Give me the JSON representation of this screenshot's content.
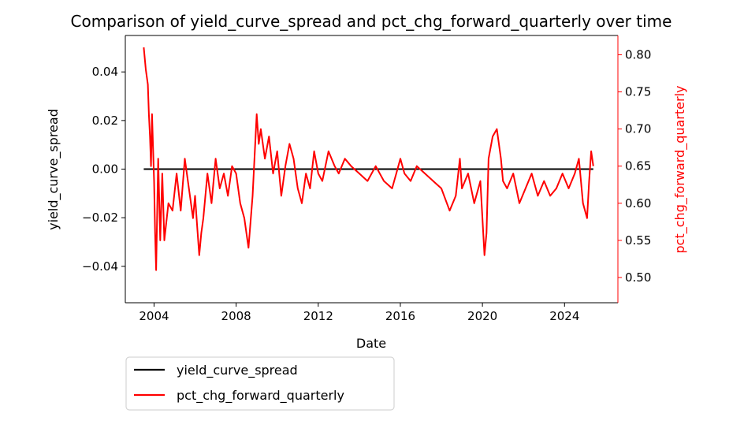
{
  "chart_data": {
    "type": "line",
    "title": "Comparison of yield_curve_spread and pct_chg_forward_quarterly over time",
    "xlabel": "Date",
    "ylabel_left": "yield_curve_spread",
    "ylabel_right": "pct_chg_forward_quarterly",
    "xlim": [
      2002.6,
      2026.6
    ],
    "ylim_left": [
      -0.055,
      0.055
    ],
    "ylim_right": [
      0.466,
      0.826
    ],
    "x_ticks": [
      2004,
      2008,
      2012,
      2016,
      2020,
      2024
    ],
    "x_tick_labels": [
      "2004",
      "2008",
      "2012",
      "2016",
      "2020",
      "2024"
    ],
    "y_ticks_left": [
      -0.04,
      -0.02,
      0.0,
      0.02,
      0.04
    ],
    "y_tick_labels_left": [
      "−0.04",
      "−0.02",
      "0.00",
      "0.02",
      "0.04"
    ],
    "y_ticks_right": [
      0.5,
      0.55,
      0.6,
      0.65,
      0.7,
      0.75,
      0.8
    ],
    "y_tick_labels_right": [
      "0.50",
      "0.55",
      "0.60",
      "0.65",
      "0.70",
      "0.75",
      "0.80"
    ],
    "grid": false,
    "legend_placement": "below-left",
    "series": [
      {
        "name": "yield_curve_spread",
        "axis": "left",
        "color": "#000000",
        "x": [
          2003.5,
          2025.4
        ],
        "y": [
          0.0,
          0.0
        ]
      },
      {
        "name": "pct_chg_forward_quarterly",
        "axis": "right",
        "color": "#ff0000",
        "x": [
          2003.5,
          2003.6,
          2003.7,
          2003.75,
          2003.8,
          2003.85,
          2003.9,
          2004.0,
          2004.05,
          2004.1,
          2004.2,
          2004.3,
          2004.4,
          2004.5,
          2004.7,
          2004.9,
          2005.1,
          2005.3,
          2005.5,
          2005.7,
          2005.9,
          2006.0,
          2006.1,
          2006.2,
          2006.3,
          2006.4,
          2006.6,
          2006.8,
          2007.0,
          2007.2,
          2007.4,
          2007.6,
          2007.8,
          2008.0,
          2008.2,
          2008.4,
          2008.6,
          2008.8,
          2009.0,
          2009.1,
          2009.2,
          2009.4,
          2009.6,
          2009.8,
          2010.0,
          2010.2,
          2010.4,
          2010.6,
          2010.8,
          2011.0,
          2011.2,
          2011.4,
          2011.6,
          2011.8,
          2012.0,
          2012.2,
          2012.5,
          2012.8,
          2013.0,
          2013.3,
          2013.6,
          2014.0,
          2014.4,
          2014.8,
          2015.2,
          2015.6,
          2015.8,
          2016.0,
          2016.2,
          2016.5,
          2016.8,
          2017.2,
          2017.6,
          2018.0,
          2018.4,
          2018.7,
          2018.9,
          2019.0,
          2019.3,
          2019.6,
          2019.9,
          2020.1,
          2020.2,
          2020.3,
          2020.5,
          2020.7,
          2020.9,
          2021.0,
          2021.2,
          2021.5,
          2021.8,
          2022.1,
          2022.4,
          2022.7,
          2023.0,
          2023.3,
          2023.6,
          2023.9,
          2024.2,
          2024.5,
          2024.7,
          2024.9,
          2025.1,
          2025.2,
          2025.3,
          2025.4
        ],
        "y": [
          0.81,
          0.78,
          0.76,
          0.72,
          0.69,
          0.65,
          0.72,
          0.63,
          0.56,
          0.51,
          0.66,
          0.55,
          0.64,
          0.55,
          0.6,
          0.59,
          0.64,
          0.59,
          0.66,
          0.62,
          0.58,
          0.61,
          0.57,
          0.53,
          0.56,
          0.58,
          0.64,
          0.6,
          0.66,
          0.62,
          0.64,
          0.61,
          0.65,
          0.64,
          0.6,
          0.58,
          0.54,
          0.61,
          0.72,
          0.68,
          0.7,
          0.66,
          0.69,
          0.64,
          0.67,
          0.61,
          0.65,
          0.68,
          0.66,
          0.62,
          0.6,
          0.64,
          0.62,
          0.67,
          0.64,
          0.63,
          0.67,
          0.65,
          0.64,
          0.66,
          0.65,
          0.64,
          0.63,
          0.65,
          0.63,
          0.62,
          0.64,
          0.66,
          0.64,
          0.63,
          0.65,
          0.64,
          0.63,
          0.62,
          0.59,
          0.61,
          0.66,
          0.62,
          0.64,
          0.6,
          0.63,
          0.53,
          0.56,
          0.66,
          0.69,
          0.7,
          0.66,
          0.63,
          0.62,
          0.64,
          0.6,
          0.62,
          0.64,
          0.61,
          0.63,
          0.61,
          0.62,
          0.64,
          0.62,
          0.64,
          0.66,
          0.6,
          0.58,
          0.63,
          0.67,
          0.65
        ]
      }
    ]
  }
}
